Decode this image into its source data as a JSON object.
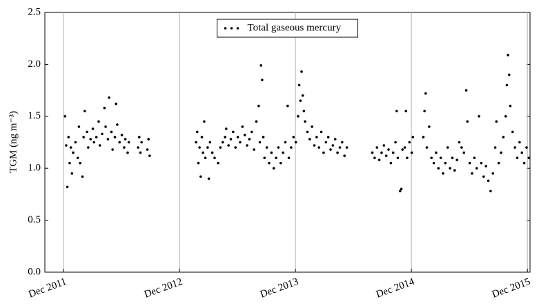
{
  "chart_data": {
    "type": "scatter",
    "y_label": "TGM (ng m⁻³)",
    "legend": "upper center",
    "grid": "x",
    "xlim": [
      2011.756,
      2015.94
    ],
    "xticks": [
      {
        "value": 2011.917,
        "label": "Dec 2011"
      },
      {
        "value": 2012.917,
        "label": "Dec 2012"
      },
      {
        "value": 2013.917,
        "label": "Dec 2013"
      },
      {
        "value": 2014.917,
        "label": "Dec 2014"
      },
      {
        "value": 2015.917,
        "label": "Dec 2015"
      }
    ],
    "ylim": [
      0,
      2.5
    ],
    "yticks": [
      {
        "value": 0,
        "label": "0.0"
      },
      0.5,
      {
        "value": 1,
        "label": "1.0"
      },
      1.5,
      {
        "value": 2,
        "label": "2.0"
      },
      2.5
    ],
    "x": [
      2011.93,
      2011.94,
      2011.95,
      2011.96,
      2011.97,
      2011.98,
      2011.99,
      2012.0,
      2012.02,
      2012.04,
      2012.05,
      2012.06,
      2012.08,
      2012.09,
      2012.1,
      2012.12,
      2012.13,
      2012.15,
      2012.17,
      2012.18,
      2012.2,
      2012.22,
      2012.23,
      2012.25,
      2012.27,
      2012.28,
      2012.3,
      2012.31,
      2012.33,
      2012.34,
      2012.36,
      2012.37,
      2012.38,
      2012.4,
      2012.42,
      2012.44,
      2012.45,
      2012.47,
      2012.48,
      2012.56,
      2012.57,
      2012.58,
      2012.59,
      2012.64,
      2012.65,
      2012.66,
      2013.06,
      2013.07,
      2013.08,
      2013.09,
      2013.1,
      2013.11,
      2013.12,
      2013.13,
      2013.14,
      2013.16,
      2013.17,
      2013.18,
      2013.2,
      2013.22,
      2013.25,
      2013.27,
      2013.29,
      2013.31,
      2013.32,
      2013.34,
      2013.36,
      2013.38,
      2013.4,
      2013.42,
      2013.44,
      2013.46,
      2013.48,
      2013.5,
      2013.52,
      2013.54,
      2013.56,
      2013.58,
      2013.6,
      2013.61,
      2013.62,
      2013.63,
      2013.64,
      2013.65,
      2013.67,
      2013.69,
      2013.71,
      2013.73,
      2013.75,
      2013.77,
      2013.79,
      2013.81,
      2013.83,
      2013.85,
      2013.86,
      2013.88,
      2013.9,
      2013.92,
      2013.94,
      2013.95,
      2013.96,
      2013.97,
      2013.98,
      2013.99,
      2014.0,
      2014.02,
      2014.04,
      2014.06,
      2014.08,
      2014.1,
      2014.12,
      2014.14,
      2014.16,
      2014.18,
      2014.2,
      2014.22,
      2014.24,
      2014.26,
      2014.28,
      2014.3,
      2014.32,
      2014.34,
      2014.36,
      2014.58,
      2014.6,
      2014.62,
      2014.64,
      2014.66,
      2014.68,
      2014.7,
      2014.72,
      2014.74,
      2014.76,
      2014.78,
      2014.79,
      2014.8,
      2014.82,
      2014.83,
      2014.84,
      2014.86,
      2014.87,
      2014.88,
      2014.9,
      2014.92,
      2014.93,
      2015.02,
      2015.03,
      2015.04,
      2015.05,
      2015.07,
      2015.09,
      2015.11,
      2015.13,
      2015.15,
      2015.17,
      2015.19,
      2015.21,
      2015.23,
      2015.25,
      2015.27,
      2015.29,
      2015.31,
      2015.33,
      2015.35,
      2015.37,
      2015.39,
      2015.4,
      2015.42,
      2015.44,
      2015.46,
      2015.48,
      2015.5,
      2015.52,
      2015.54,
      2015.56,
      2015.58,
      2015.6,
      2015.62,
      2015.64,
      2015.65,
      2015.67,
      2015.69,
      2015.71,
      2015.73,
      2015.74,
      2015.75,
      2015.76,
      2015.77,
      2015.79,
      2015.81,
      2015.83,
      2015.85,
      2015.87,
      2015.89,
      2015.91,
      2015.93
    ],
    "series": [
      {
        "name": "Total gaseous mercury",
        "color": "#000000",
        "values": [
          1.5,
          1.22,
          0.82,
          1.3,
          1.05,
          1.2,
          0.95,
          1.15,
          1.25,
          1.1,
          1.4,
          1.05,
          0.92,
          1.3,
          1.55,
          1.35,
          1.2,
          1.28,
          1.38,
          1.25,
          1.3,
          1.45,
          1.22,
          1.33,
          1.58,
          1.4,
          1.28,
          1.68,
          1.35,
          1.18,
          1.3,
          1.62,
          1.42,
          1.25,
          1.32,
          1.2,
          1.28,
          1.15,
          1.25,
          1.2,
          1.3,
          1.15,
          1.25,
          1.18,
          1.28,
          1.12,
          1.25,
          1.35,
          1.05,
          1.2,
          0.92,
          1.3,
          1.15,
          1.45,
          1.1,
          1.2,
          0.9,
          1.25,
          1.15,
          1.1,
          1.05,
          1.2,
          1.25,
          1.3,
          1.38,
          1.22,
          1.28,
          1.35,
          1.2,
          1.3,
          1.25,
          1.4,
          1.32,
          1.22,
          1.28,
          1.35,
          1.18,
          1.45,
          1.6,
          1.25,
          1.99,
          1.85,
          1.3,
          1.1,
          1.2,
          1.05,
          1.15,
          1.0,
          1.1,
          1.2,
          1.05,
          1.15,
          1.25,
          1.6,
          1.1,
          1.2,
          1.3,
          1.25,
          1.5,
          1.8,
          1.65,
          1.93,
          1.7,
          1.55,
          1.45,
          1.35,
          1.28,
          1.4,
          1.22,
          1.3,
          1.2,
          1.35,
          1.15,
          1.25,
          1.3,
          1.18,
          1.22,
          1.28,
          1.15,
          1.2,
          1.25,
          1.12,
          1.2,
          1.15,
          1.1,
          1.2,
          1.08,
          1.15,
          1.22,
          1.12,
          1.18,
          1.05,
          1.15,
          1.25,
          1.55,
          1.1,
          0.78,
          0.8,
          1.18,
          1.2,
          1.55,
          1.1,
          1.25,
          1.15,
          1.3,
          1.3,
          1.55,
          1.72,
          1.2,
          1.4,
          1.1,
          1.05,
          1.15,
          1.0,
          1.1,
          0.95,
          1.05,
          1.2,
          1.0,
          1.1,
          0.98,
          1.08,
          1.25,
          1.2,
          1.15,
          1.75,
          1.45,
          1.05,
          0.95,
          1.1,
          1.0,
          1.5,
          1.05,
          0.92,
          1.02,
          0.88,
          0.78,
          0.95,
          1.2,
          1.45,
          1.05,
          1.15,
          1.3,
          1.5,
          1.8,
          2.09,
          1.9,
          1.6,
          1.35,
          1.2,
          1.1,
          1.25,
          1.15,
          1.05,
          1.2,
          1.1
        ]
      }
    ]
  }
}
